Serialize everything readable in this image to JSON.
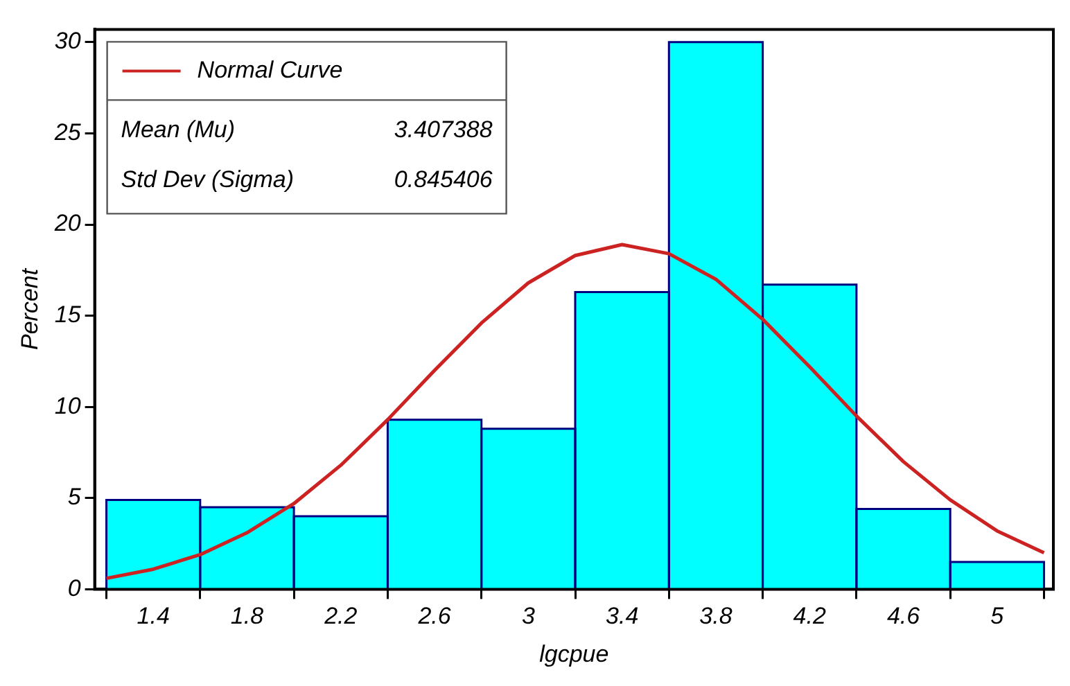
{
  "chart_data": {
    "type": "histogram",
    "xlabel": "lgcpue",
    "ylabel": "Percent",
    "bins": [
      1.2,
      1.6,
      2.0,
      2.4,
      2.8,
      3.2,
      3.6,
      4.0,
      4.4,
      4.8,
      5.2
    ],
    "values": [
      4.9,
      4.5,
      4.0,
      9.3,
      8.8,
      16.3,
      30,
      16.7,
      4.4,
      1.5
    ],
    "color": "#00ffff",
    "series": [
      {
        "type": "line",
        "name": "Normal Curve",
        "color": "#cc2222",
        "x": [
          1.2,
          1.4,
          1.6,
          1.8,
          2.0,
          2.2,
          2.4,
          2.6,
          2.8,
          3.0,
          3.2,
          3.4,
          3.6,
          3.8,
          4.0,
          4.2,
          4.4,
          4.6,
          4.8,
          5.0,
          5.2
        ],
        "values": [
          0.6,
          1.1,
          1.9,
          3.1,
          4.7,
          6.8,
          9.3,
          12.0,
          14.6,
          16.8,
          18.3,
          18.9,
          18.4,
          17.0,
          14.8,
          12.2,
          9.5,
          7.0,
          4.9,
          3.2,
          2.0
        ]
      }
    ],
    "annotations": [
      "Mean (Mu)",
      "3.407388",
      "Std Dev (Sigma)",
      "0.845406"
    ],
    "xlim": [
      1.15,
      5.24
    ],
    "xticks": [
      1.4,
      1.8,
      2.2,
      2.6,
      3,
      3.4,
      3.8,
      4.2,
      4.6,
      5
    ],
    "ylim": [
      0,
      30.7
    ],
    "yticks": [
      0,
      5,
      10,
      15,
      20,
      25,
      30
    ],
    "legend": "top left",
    "grid": false,
    "marker": "none",
    "line_style": "solid"
  }
}
